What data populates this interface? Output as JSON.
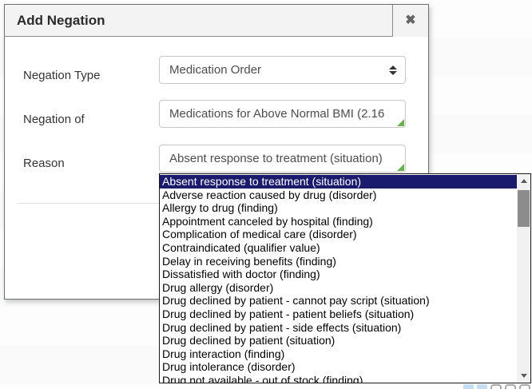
{
  "modal": {
    "title": "Add Negation",
    "close_glyph": "✖",
    "fields": [
      {
        "label": "Negation Type",
        "value": "Medication Order",
        "control": "select"
      },
      {
        "label": "Negation of",
        "value": "Medications for Above Normal BMI (2.16",
        "control": "combobox"
      },
      {
        "label": "Reason",
        "value": "Absent response to treatment (situation)",
        "control": "combobox"
      }
    ]
  },
  "dropdown": {
    "selected_index": 0,
    "options": [
      "Absent response to treatment (situation)",
      "Adverse reaction caused by drug (disorder)",
      "Allergy to drug (finding)",
      "Appointment canceled by hospital (finding)",
      "Complication of medical care (disorder)",
      "Contraindicated (qualifier value)",
      "Delay in receiving benefits (finding)",
      "Dissatisfied with doctor (finding)",
      "Drug allergy (disorder)",
      "Drug declined by patient - cannot pay script (situation)",
      "Drug declined by patient - patient beliefs (situation)",
      "Drug declined by patient - side effects (situation)",
      "Drug declined by patient (situation)",
      "Drug interaction (finding)",
      "Drug intolerance (disorder)",
      "Drug not available - out of stock (finding)"
    ]
  },
  "colors": {
    "selection_highlight": "#1b1b6e",
    "combobox_corner_green": "#6ab04c",
    "header_bg": "#f3f3f3",
    "modal_border": "#6f6f6f",
    "watermark_blue": "#c5ddf2"
  }
}
